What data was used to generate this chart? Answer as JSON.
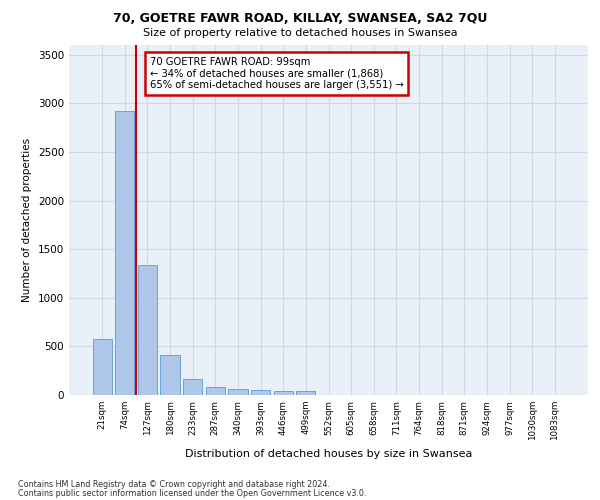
{
  "title1": "70, GOETRE FAWR ROAD, KILLAY, SWANSEA, SA2 7QU",
  "title2": "Size of property relative to detached houses in Swansea",
  "xlabel": "Distribution of detached houses by size in Swansea",
  "ylabel": "Number of detached properties",
  "footnote1": "Contains HM Land Registry data © Crown copyright and database right 2024.",
  "footnote2": "Contains public sector information licensed under the Open Government Licence v3.0.",
  "annotation_line1": "70 GOETRE FAWR ROAD: 99sqm",
  "annotation_line2": "← 34% of detached houses are smaller (1,868)",
  "annotation_line3": "65% of semi-detached houses are larger (3,551) →",
  "bar_color": "#aec6e8",
  "bar_edge_color": "#5b9bd5",
  "grid_color": "#d0d8e8",
  "background_color": "#eaf0f8",
  "red_line_color": "#cc0000",
  "categories": [
    "21sqm",
    "74sqm",
    "127sqm",
    "180sqm",
    "233sqm",
    "287sqm",
    "340sqm",
    "393sqm",
    "446sqm",
    "499sqm",
    "552sqm",
    "605sqm",
    "658sqm",
    "711sqm",
    "764sqm",
    "818sqm",
    "871sqm",
    "924sqm",
    "977sqm",
    "1030sqm",
    "1083sqm"
  ],
  "values": [
    575,
    2920,
    1340,
    415,
    160,
    85,
    60,
    55,
    45,
    40,
    0,
    0,
    0,
    0,
    0,
    0,
    0,
    0,
    0,
    0,
    0
  ],
  "red_line_x": 1.5,
  "ylim": [
    0,
    3600
  ],
  "yticks": [
    0,
    500,
    1000,
    1500,
    2000,
    2500,
    3000,
    3500
  ]
}
